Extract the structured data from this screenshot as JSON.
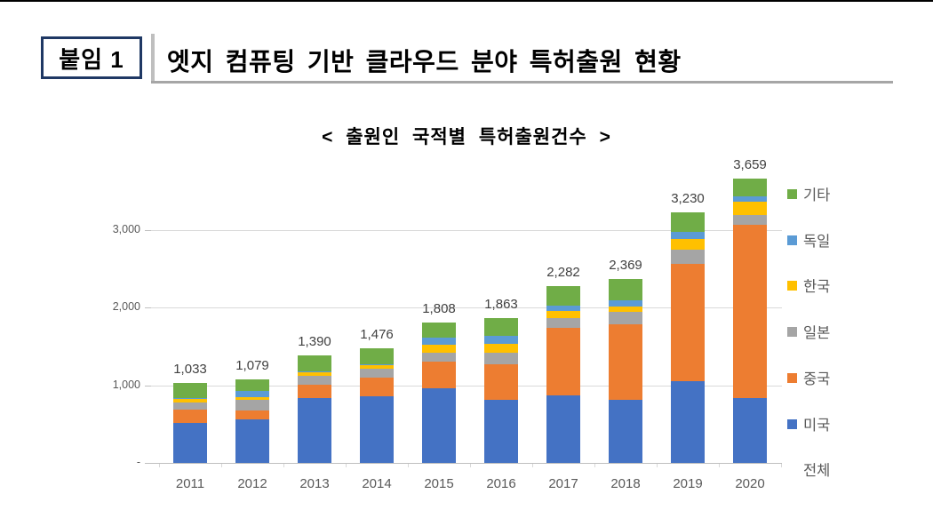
{
  "document": {
    "badge": "붙임 1",
    "title": "엣지 컴퓨팅 기반 클라우드 분야 특허출원 현황"
  },
  "chart_data": {
    "type": "bar",
    "variant": "stacked-column",
    "title": "< 출원인 국적별 특허출원건수 >",
    "categories": [
      "2011",
      "2012",
      "2013",
      "2014",
      "2015",
      "2016",
      "2017",
      "2018",
      "2019",
      "2020"
    ],
    "series": [
      {
        "name": "미국",
        "color": "#4472C4",
        "values": [
          510,
          565,
          838,
          857,
          965,
          813,
          865,
          810,
          1050,
          840
        ]
      },
      {
        "name": "중국",
        "color": "#ED7D31",
        "values": [
          172,
          115,
          171,
          240,
          345,
          458,
          880,
          975,
          1510,
          2234
        ]
      },
      {
        "name": "일본",
        "color": "#A5A5A5",
        "values": [
          96,
          134,
          114,
          114,
          115,
          152,
          126,
          164,
          191,
          115
        ]
      },
      {
        "name": "한국",
        "color": "#FFC000",
        "values": [
          46,
          38,
          46,
          46,
          100,
          115,
          92,
          65,
          134,
          172
        ]
      },
      {
        "name": "독일",
        "color": "#5B9BD5",
        "values": [
          11,
          77,
          8,
          19,
          90,
          96,
          69,
          77,
          95,
          76
        ]
      },
      {
        "name": "기타",
        "color": "#70AD47",
        "values": [
          198,
          150,
          213,
          200,
          193,
          229,
          250,
          278,
          250,
          222
        ]
      }
    ],
    "totals": [
      1033,
      1079,
      1390,
      1476,
      1808,
      1863,
      2282,
      2369,
      3230,
      3659
    ],
    "total_labels": [
      "1,033",
      "1,079",
      "1,390",
      "1,476",
      "1,808",
      "1,863",
      "2,282",
      "2,369",
      "3,230",
      "3,659"
    ],
    "y_ticks": [
      {
        "label": "-",
        "value": 0
      },
      {
        "label": "1,000",
        "value": 1000
      },
      {
        "label": "2,000",
        "value": 2000
      },
      {
        "label": "3,000",
        "value": 3000
      }
    ],
    "ylim": [
      0,
      3800
    ],
    "grid": true,
    "legend_position": "right",
    "legend": [
      {
        "label": "기타",
        "color": "#70AD47"
      },
      {
        "label": "독일",
        "color": "#5B9BD5"
      },
      {
        "label": "한국",
        "color": "#FFC000"
      },
      {
        "label": "일본",
        "color": "#A5A5A5"
      },
      {
        "label": "중국",
        "color": "#ED7D31"
      },
      {
        "label": "미국",
        "color": "#4472C4"
      },
      {
        "label": "전체",
        "color": null
      }
    ],
    "colors": {
      "grid": "#D9D9D9",
      "axis": "#BFBFBF",
      "axis_labels": "#595959",
      "data_labels": "#404040",
      "legend_text": "#595959"
    }
  }
}
